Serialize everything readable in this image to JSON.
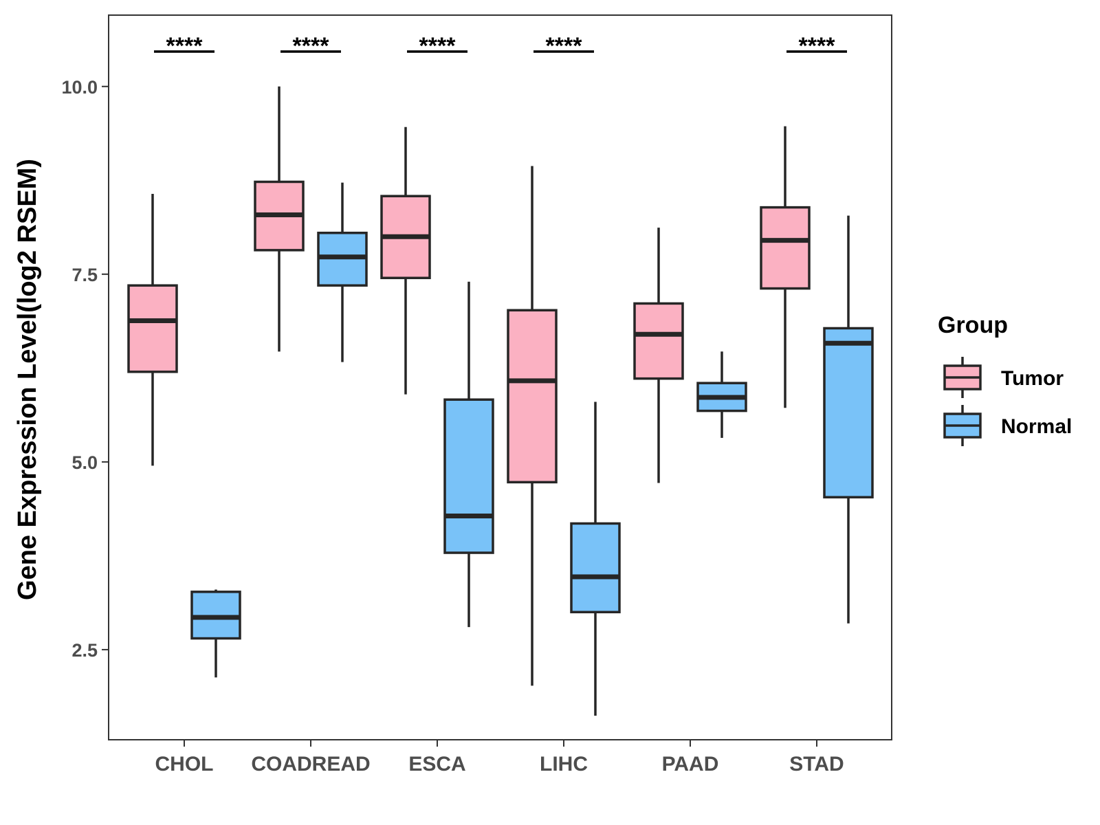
{
  "chart_data": {
    "type": "boxplot",
    "title": "",
    "xlabel": "",
    "ylabel": "Gene Expression Level(log2 RSEM)",
    "ylim": [
      1.3,
      10.95
    ],
    "yticks": [
      2.5,
      5.0,
      7.5,
      10.0
    ],
    "ytick_labels": [
      "2.5",
      "5.0",
      "7.5",
      "10.0"
    ],
    "grid": false,
    "legend": {
      "title": "Group",
      "position": "right"
    },
    "categories": [
      "CHOL",
      "COADREAD",
      "ESCA",
      "LIHC",
      "PAAD",
      "STAD"
    ],
    "series": [
      {
        "name": "Tumor",
        "color": "#FBB1C2",
        "boxes": [
          {
            "whisker_low": 4.95,
            "q1": 6.2,
            "median": 6.88,
            "q3": 7.35,
            "whisker_high": 8.57
          },
          {
            "whisker_low": 6.47,
            "q1": 7.82,
            "median": 8.29,
            "q3": 8.73,
            "whisker_high": 10.0
          },
          {
            "whisker_low": 5.9,
            "q1": 7.45,
            "median": 8.0,
            "q3": 8.54,
            "whisker_high": 9.46
          },
          {
            "whisker_low": 2.02,
            "q1": 4.73,
            "median": 6.08,
            "q3": 7.02,
            "whisker_high": 8.94
          },
          {
            "whisker_low": 4.72,
            "q1": 6.11,
            "median": 6.7,
            "q3": 7.11,
            "whisker_high": 8.12
          },
          {
            "whisker_low": 5.72,
            "q1": 7.31,
            "median": 7.95,
            "q3": 8.39,
            "whisker_high": 9.47
          }
        ]
      },
      {
        "name": "Normal",
        "color": "#79C2F8",
        "boxes": [
          {
            "whisker_low": 2.13,
            "q1": 2.65,
            "median": 2.93,
            "q3": 3.27,
            "whisker_high": 3.3
          },
          {
            "whisker_low": 6.33,
            "q1": 7.35,
            "median": 7.73,
            "q3": 8.05,
            "whisker_high": 8.72
          },
          {
            "whisker_low": 2.8,
            "q1": 3.79,
            "median": 4.28,
            "q3": 5.83,
            "whisker_high": 7.4
          },
          {
            "whisker_low": 1.62,
            "q1": 3.0,
            "median": 3.47,
            "q3": 4.18,
            "whisker_high": 5.8
          },
          {
            "whisker_low": 5.32,
            "q1": 5.68,
            "median": 5.86,
            "q3": 6.05,
            "whisker_high": 6.47
          },
          {
            "whisker_low": 2.85,
            "q1": 4.53,
            "median": 6.58,
            "q3": 6.78,
            "whisker_high": 8.28
          }
        ]
      }
    ],
    "significance": [
      {
        "category": "CHOL",
        "label": "****"
      },
      {
        "category": "COADREAD",
        "label": "****"
      },
      {
        "category": "ESCA",
        "label": "****"
      },
      {
        "category": "LIHC",
        "label": "****"
      },
      {
        "category": "PAAD",
        "label": ""
      },
      {
        "category": "STAD",
        "label": "****"
      }
    ]
  }
}
